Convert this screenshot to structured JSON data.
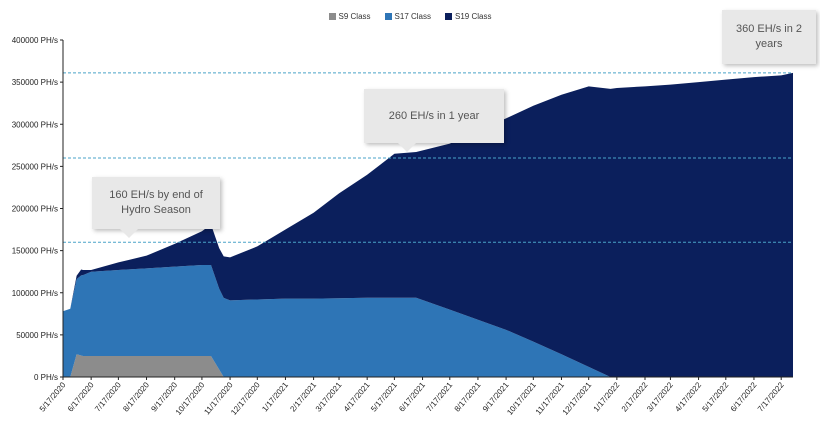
{
  "chart_data": {
    "type": "area",
    "stacked": true,
    "x": [
      "5/17/2020",
      "6/17/2020",
      "7/17/2020",
      "8/17/2020",
      "9/17/2020",
      "10/17/2020",
      "11/17/2020",
      "12/17/2020",
      "1/17/2021",
      "2/17/2021",
      "3/17/2021",
      "4/17/2021",
      "5/17/2021",
      "6/17/2021",
      "7/17/2021",
      "8/17/2021",
      "9/17/2021",
      "10/17/2021",
      "11/17/2021",
      "12/17/2021",
      "1/17/2022",
      "2/17/2022",
      "3/17/2022",
      "4/17/2022",
      "5/17/2022",
      "6/17/2022",
      "7/17/2022"
    ],
    "ylim": [
      0,
      400000
    ],
    "yticks": [
      "0 PH/s",
      "50000 PH/s",
      "100000 PH/s",
      "150000 PH/s",
      "200000 PH/s",
      "250000 PH/s",
      "300000 PH/s",
      "350000 PH/s",
      "400000 PH/s"
    ],
    "series": [
      {
        "name": "S9 Class",
        "color": "#8c8c8c",
        "points": [
          [
            "5/17/2020",
            0
          ],
          [
            "5/25/2020",
            0
          ],
          [
            "6/1/2020",
            27000
          ],
          [
            "6/8/2020",
            25000
          ],
          [
            "10/27/2020",
            25000
          ],
          [
            "11/10/2020",
            0
          ],
          [
            "7/30/2022",
            0
          ]
        ]
      },
      {
        "name": "S17 Class",
        "color": "#2e75b6",
        "points": [
          [
            "5/17/2020",
            78000
          ],
          [
            "5/25/2020",
            81000
          ],
          [
            "6/6/2020",
            95000
          ],
          [
            "6/17/2020",
            100000
          ],
          [
            "7/17/2020",
            102000
          ],
          [
            "8/17/2020",
            104000
          ],
          [
            "9/17/2020",
            106000
          ],
          [
            "10/17/2020",
            108000
          ],
          [
            "10/27/2020",
            108000
          ],
          [
            "11/5/2020",
            96000
          ],
          [
            "11/17/2020",
            91000
          ],
          [
            "12/17/2020",
            92000
          ],
          [
            "1/17/2021",
            93000
          ],
          [
            "2/17/2021",
            93000
          ],
          [
            "3/17/2021",
            93500
          ],
          [
            "4/17/2021",
            94000
          ],
          [
            "5/17/2021",
            94000
          ],
          [
            "6/10/2021",
            94000
          ],
          [
            "7/17/2021",
            80000
          ],
          [
            "8/17/2021",
            68000
          ],
          [
            "9/17/2021",
            56000
          ],
          [
            "10/17/2021",
            42000
          ],
          [
            "11/17/2021",
            27000
          ],
          [
            "12/17/2021",
            12000
          ],
          [
            "1/10/2022",
            0
          ],
          [
            "7/30/2022",
            0
          ]
        ]
      },
      {
        "name": "S19 Class",
        "color": "#0b1f5c",
        "points": [
          [
            "5/17/2020",
            0
          ],
          [
            "5/25/2020",
            0
          ],
          [
            "6/6/2020",
            7000
          ],
          [
            "6/17/2020",
            2000
          ],
          [
            "7/17/2020",
            9000
          ],
          [
            "8/17/2020",
            15000
          ],
          [
            "9/17/2020",
            27000
          ],
          [
            "10/17/2020",
            40000
          ],
          [
            "10/27/2020",
            48000
          ],
          [
            "11/5/2020",
            48000
          ],
          [
            "11/17/2020",
            51000
          ],
          [
            "12/17/2020",
            63000
          ],
          [
            "1/17/2021",
            82000
          ],
          [
            "2/17/2021",
            102000
          ],
          [
            "3/17/2021",
            124500
          ],
          [
            "4/17/2021",
            146000
          ],
          [
            "5/17/2021",
            171000
          ],
          [
            "6/10/2021",
            173000
          ],
          [
            "7/17/2021",
            197000
          ],
          [
            "8/17/2021",
            225000
          ],
          [
            "9/17/2021",
            251000
          ],
          [
            "10/17/2021",
            280000
          ],
          [
            "11/17/2021",
            308000
          ],
          [
            "12/17/2021",
            333000
          ],
          [
            "1/10/2022",
            342000
          ],
          [
            "1/17/2022",
            343000
          ],
          [
            "2/17/2022",
            345000
          ],
          [
            "3/17/2022",
            347000
          ],
          [
            "4/17/2022",
            350000
          ],
          [
            "5/17/2022",
            353000
          ],
          [
            "6/17/2022",
            356000
          ],
          [
            "7/17/2022",
            358000
          ],
          [
            "7/30/2022",
            361000
          ]
        ]
      }
    ],
    "reference_lines": [
      160000,
      260000,
      361000
    ],
    "annotations": [
      {
        "text": "160 EH/s by end of Hydro Season",
        "value": 160000
      },
      {
        "text": "260 EH/s in 1 year",
        "value": 260000
      },
      {
        "text": "360 EH/s in 2 years",
        "value": 360000
      }
    ],
    "legend": "top-center",
    "grid": false
  }
}
